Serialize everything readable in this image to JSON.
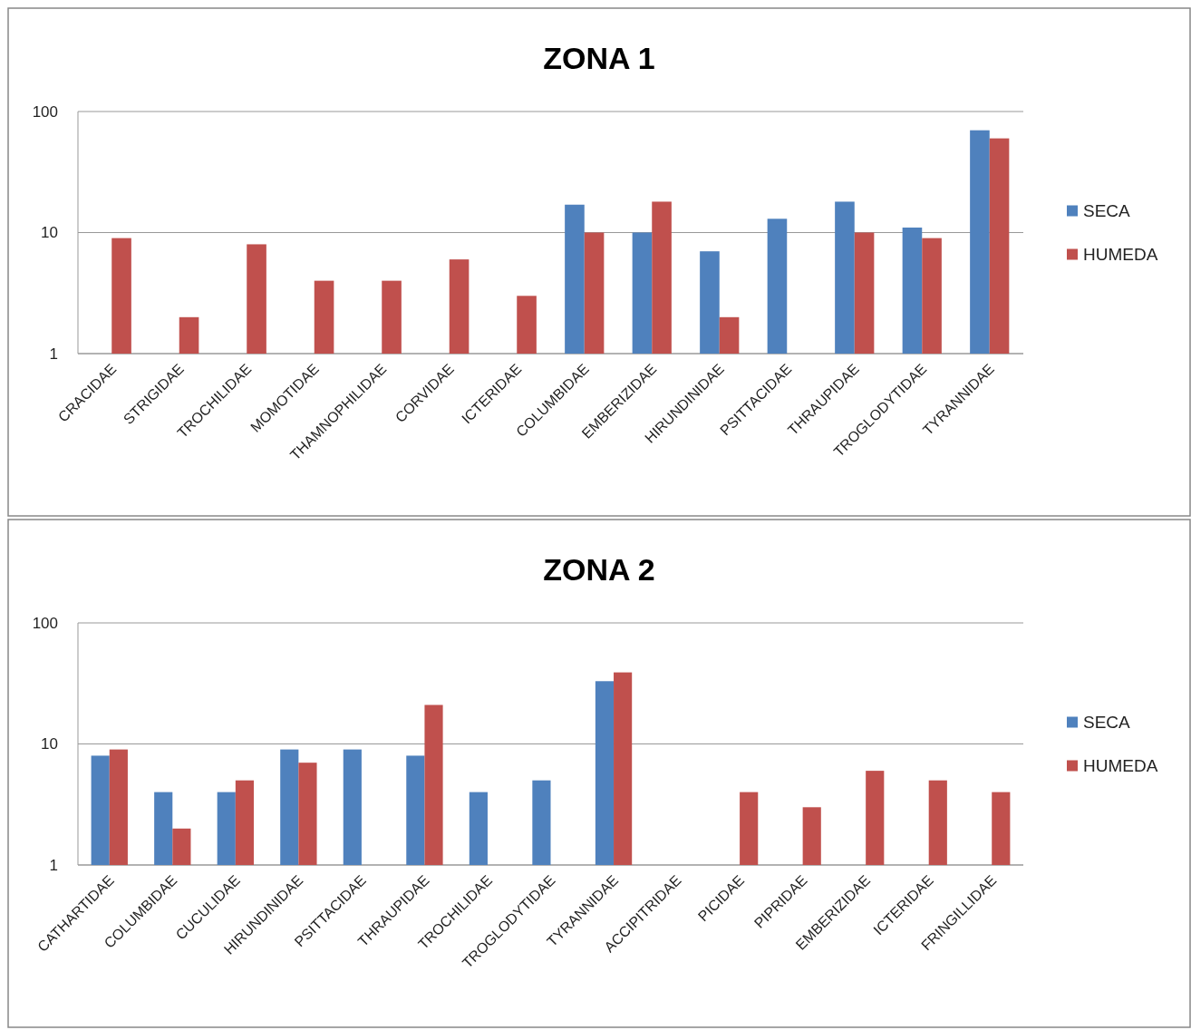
{
  "chart_data": [
    {
      "type": "bar",
      "title": "ZONA 1",
      "categories": [
        "CRACIDAE",
        "STRIGIDAE",
        "TROCHILIDAE",
        "MOMOTIDAE",
        "THAMNOPHILIDAE",
        "CORVIDAE",
        "ICTERIDAE",
        "COLUMBIDAE",
        "EMBERIZIDAE",
        "HIRUNDINIDAE",
        "PSITTACIDAE",
        "THRAUPIDAE",
        "TROGLODYTIDAE",
        "TYRANNIDAE"
      ],
      "series": [
        {
          "name": "SECA",
          "color": "#4f81bd",
          "values": [
            null,
            null,
            null,
            null,
            null,
            null,
            null,
            17,
            10,
            7,
            13,
            18,
            11,
            70
          ]
        },
        {
          "name": "HUMEDA",
          "color": "#c0504d",
          "values": [
            9,
            2,
            8,
            4,
            4,
            6,
            3,
            10,
            18,
            2,
            null,
            10,
            9,
            60
          ]
        }
      ],
      "log": true,
      "ylim": [
        1,
        100
      ],
      "yticks": [
        1,
        10,
        100
      ],
      "grid": "y",
      "legend": "right"
    },
    {
      "type": "bar",
      "title": "ZONA 2",
      "categories": [
        "CATHARTIDAE",
        "COLUMBIDAE",
        "CUCULIDAE",
        "HIRUNDINIDAE",
        "PSITTACIDAE",
        "THRAUPIDAE",
        "TROCHILIDAE",
        "TROGLODYTIDAE",
        "TYRANNIDAE",
        "ACCIPITRIDAE",
        "PICIDAE",
        "PIPRIDAE",
        "EMBERIZIDAE",
        "ICTERIDAE",
        "FRINGILLIDAE"
      ],
      "series": [
        {
          "name": "SECA",
          "color": "#4f81bd",
          "values": [
            8,
            4,
            4,
            9,
            9,
            8,
            4,
            5,
            33,
            null,
            null,
            null,
            null,
            null,
            null
          ]
        },
        {
          "name": "HUMEDA",
          "color": "#c0504d",
          "values": [
            9,
            2,
            5,
            7,
            null,
            21,
            null,
            null,
            39,
            null,
            4,
            3,
            6,
            5,
            4
          ]
        }
      ],
      "log": true,
      "ylim": [
        1,
        100
      ],
      "yticks": [
        1,
        10,
        100
      ],
      "grid": "y",
      "legend": "right"
    }
  ]
}
